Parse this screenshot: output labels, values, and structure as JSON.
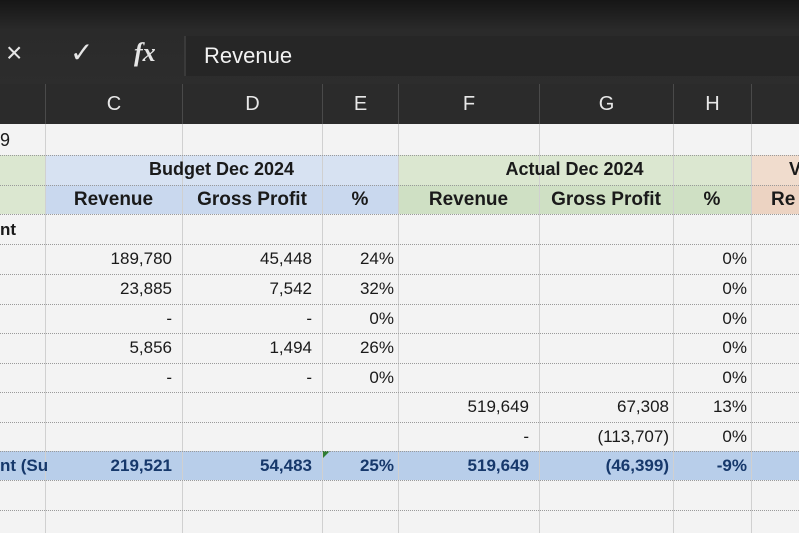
{
  "formula_bar": {
    "cancel_icon": "×",
    "enter_icon": "✓",
    "fx_label": "fx",
    "value": "Revenue"
  },
  "column_headers": [
    "C",
    "D",
    "E",
    "F",
    "G",
    "H"
  ],
  "sheet": {
    "row_fragment_top": "9",
    "group_budget": "Budget Dec 2024",
    "group_actual": "Actual Dec 2024",
    "group_next_partial": "V",
    "sub_headers": {
      "budget": [
        "Revenue",
        "Gross Profit",
        "%"
      ],
      "actual": [
        "Revenue",
        "Gross Profit",
        "%"
      ],
      "next_partial": "Re"
    },
    "label_fragment": "nt",
    "rows": [
      {
        "c": "189,780",
        "d": "45,448",
        "e": "24%",
        "f": "",
        "g": "",
        "h": "0%"
      },
      {
        "c": "23,885",
        "d": "7,542",
        "e": "32%",
        "f": "",
        "g": "",
        "h": "0%"
      },
      {
        "c": "-",
        "d": "-",
        "e": "0%",
        "f": "",
        "g": "",
        "h": "0%"
      },
      {
        "c": "5,856",
        "d": "1,494",
        "e": "26%",
        "f": "",
        "g": "",
        "h": "0%"
      },
      {
        "c": "-",
        "d": "-",
        "e": "0%",
        "f": "",
        "g": "",
        "h": "0%"
      },
      {
        "c": "",
        "d": "",
        "e": "",
        "f": "519,649",
        "g": "67,308",
        "h": "13%"
      },
      {
        "c": "",
        "d": "",
        "e": "",
        "f": "-",
        "g": "(113,707)",
        "h": "0%"
      }
    ],
    "total_row": {
      "label_fragment": "nt (Su",
      "c": "219,521",
      "d": "54,483",
      "e": "25%",
      "f": "519,649",
      "g": "(46,399)",
      "h": "-9%"
    }
  },
  "colors": {
    "budget_header_bg": "#d7e2f2",
    "actual_header_bg": "#dbe7d0",
    "next_header_bg": "#f0dccd",
    "total_row_bg": "#b8ceea",
    "grid_bg": "#f3f3f3"
  }
}
